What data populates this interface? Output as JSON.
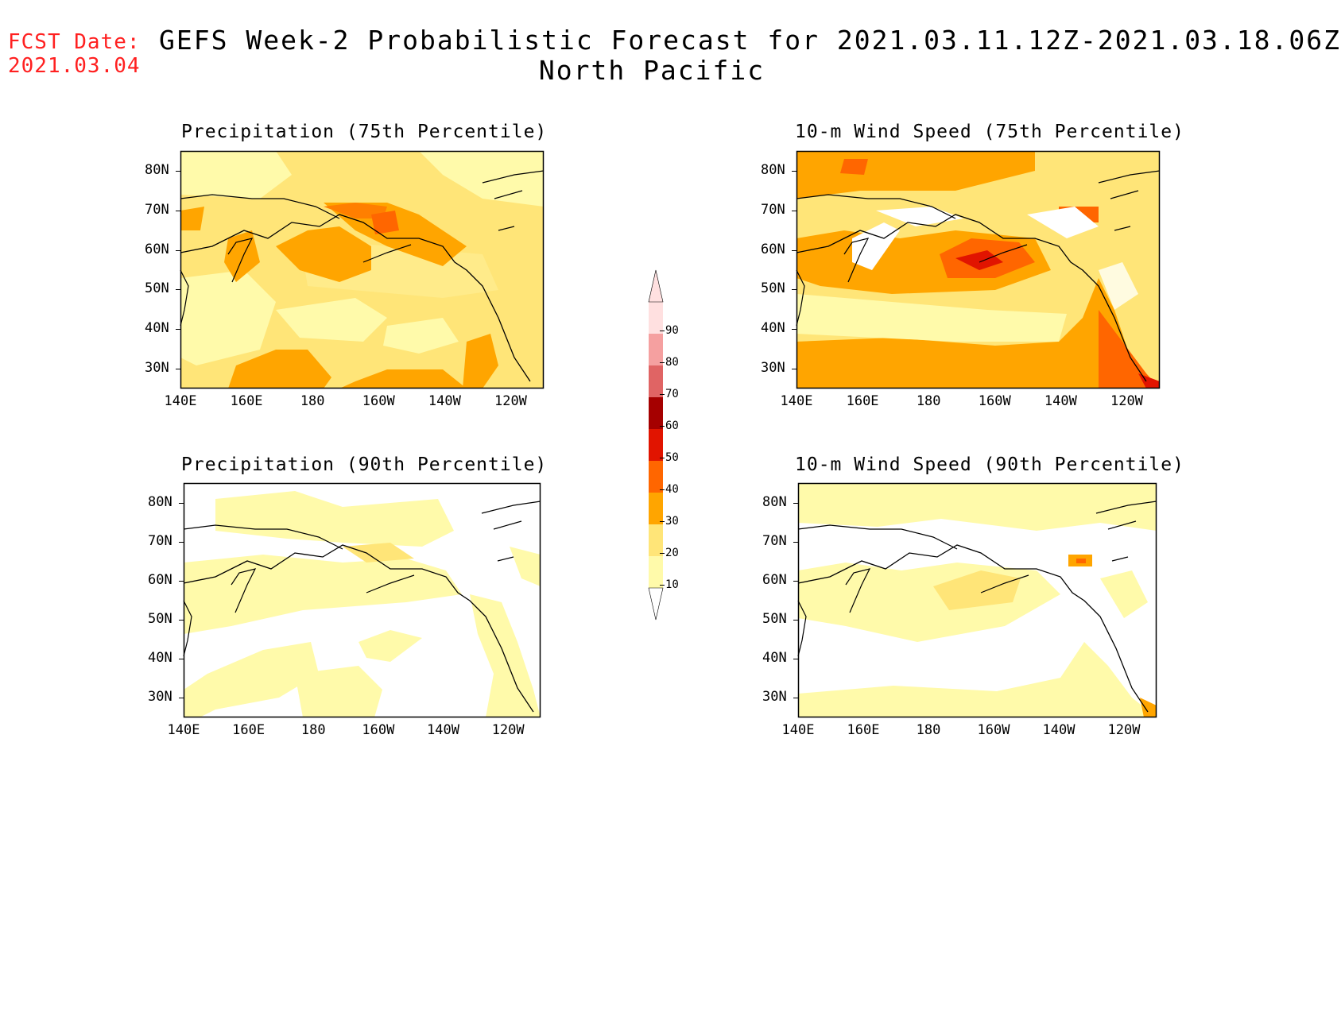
{
  "header": {
    "fcst_label": "FCST Date:",
    "fcst_date": "2021.03.04",
    "title": "GEFS Week-2 Probabilistic Forecast for 2021.03.11.12Z-2021.03.18.06Z",
    "region": "North Pacific"
  },
  "panels": [
    {
      "title": "Precipitation (75th Percentile)"
    },
    {
      "title": "10-m Wind Speed (75th Percentile)"
    },
    {
      "title": "Precipitation (90th Percentile)"
    },
    {
      "title": "10-m Wind Speed (90th Percentile)"
    }
  ],
  "axes": {
    "lon_labels": [
      "140E",
      "160E",
      "180",
      "160W",
      "140W",
      "120W"
    ],
    "lat_labels": [
      "80N",
      "70N",
      "60N",
      "50N",
      "40N",
      "30N"
    ]
  },
  "colorbar": {
    "levels": [
      "10",
      "20",
      "30",
      "40",
      "50",
      "60",
      "70",
      "80",
      "90"
    ],
    "colors": [
      "#fffaaa",
      "#ffe578",
      "#ffa500",
      "#ff6600",
      "#e11400",
      "#a50000",
      "#e06464",
      "#f5a0a0",
      "#ffe0e0"
    ]
  }
}
